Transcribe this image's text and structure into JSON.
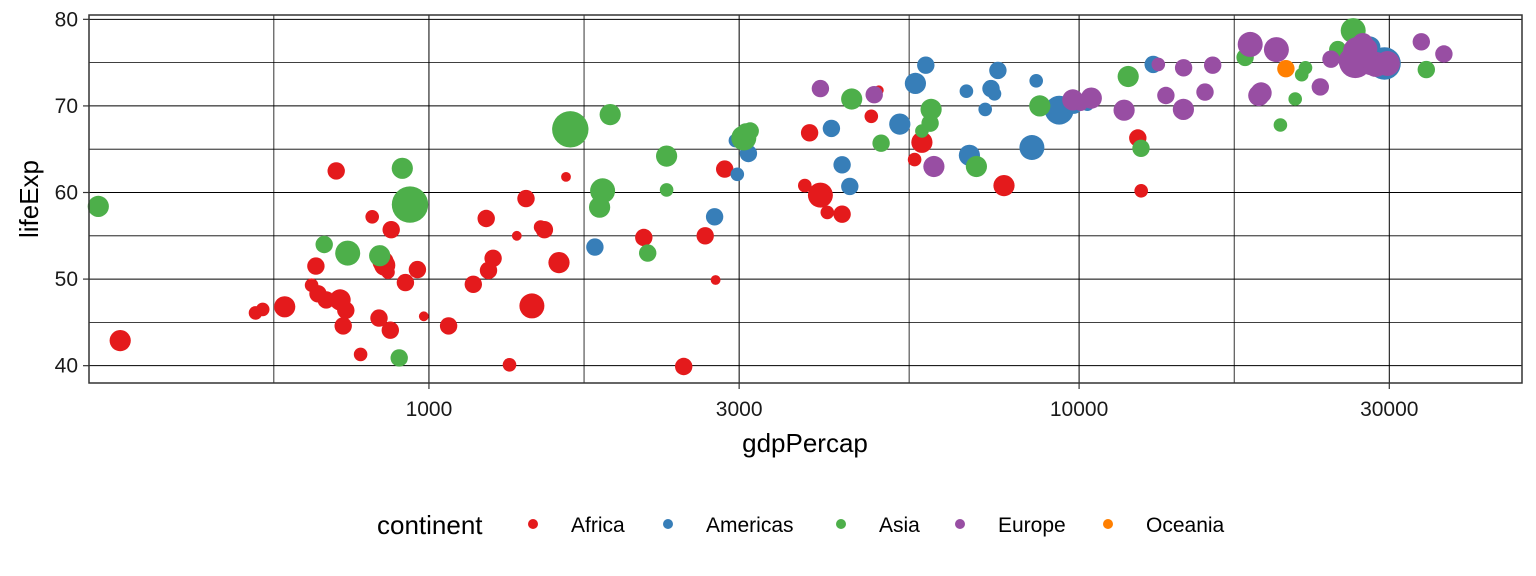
{
  "chart_data": {
    "type": "scatter",
    "title": "",
    "xlabel": "gdpPercap",
    "ylabel": "lifeExp",
    "x_scale": "log10",
    "xlim": [
      300,
      48000
    ],
    "ylim": [
      38,
      80.5
    ],
    "x_ticks": [
      1000,
      3000,
      10000,
      30000
    ],
    "x_tick_labels": [
      "1000",
      "3000",
      "10000",
      "30000"
    ],
    "y_ticks": [
      40,
      50,
      60,
      70,
      80
    ],
    "y_tick_labels": [
      "40",
      "50",
      "60",
      "70",
      "80"
    ],
    "grid": true,
    "legend": {
      "title": "continent",
      "placement": "bottom",
      "entries": [
        {
          "name": "Africa",
          "color": "#E41A1C"
        },
        {
          "name": "Americas",
          "color": "#377EB8"
        },
        {
          "name": "Asia",
          "color": "#4DAF4A"
        },
        {
          "name": "Europe",
          "color": "#984EA3"
        },
        {
          "name": "Oceania",
          "color": "#FF7F00"
        }
      ]
    },
    "series": [
      {
        "name": "Africa",
        "color": "#E41A1C",
        "points": [
          [
            335,
            42.9,
            4
          ],
          [
            541,
            46.1,
            2
          ],
          [
            555,
            46.5,
            2
          ],
          [
            600,
            46.8,
            4
          ],
          [
            660,
            49.3,
            2
          ],
          [
            670,
            51.5,
            3
          ],
          [
            675,
            48.3,
            3
          ],
          [
            695,
            47.6,
            3
          ],
          [
            720,
            62.5,
            3
          ],
          [
            730,
            47.6,
            4
          ],
          [
            738,
            44.6,
            3
          ],
          [
            745,
            46.4,
            3
          ],
          [
            785,
            41.3,
            2
          ],
          [
            818,
            57.2,
            2
          ],
          [
            838,
            45.5,
            3
          ],
          [
            850,
            52.0,
            4
          ],
          [
            855,
            51.6,
            4
          ],
          [
            865,
            50.8,
            2
          ],
          [
            872,
            44.1,
            3
          ],
          [
            875,
            55.7,
            3
          ],
          [
            920,
            49.6,
            3
          ],
          [
            960,
            51.1,
            3
          ],
          [
            982,
            45.7,
            1
          ],
          [
            1072,
            44.6,
            3
          ],
          [
            1170,
            49.4,
            3
          ],
          [
            1235,
            51.0,
            3
          ],
          [
            1255,
            52.4,
            3
          ],
          [
            1225,
            57.0,
            3
          ],
          [
            1330,
            40.1,
            2
          ],
          [
            1365,
            55.0,
            1
          ],
          [
            1410,
            59.3,
            3
          ],
          [
            1440,
            46.9,
            5
          ],
          [
            1485,
            56.0,
            2
          ],
          [
            1505,
            55.7,
            3
          ],
          [
            1585,
            51.9,
            4
          ],
          [
            1625,
            61.8,
            1
          ],
          [
            2140,
            54.8,
            3
          ],
          [
            2465,
            39.9,
            3
          ],
          [
            2660,
            55.0,
            3
          ],
          [
            2760,
            49.9,
            1
          ],
          [
            2850,
            62.7,
            3
          ],
          [
            3785,
            60.8,
            2
          ],
          [
            3850,
            66.9,
            3
          ],
          [
            4000,
            59.7,
            5
          ],
          [
            4100,
            57.7,
            2
          ],
          [
            4320,
            57.5,
            3
          ],
          [
            4790,
            68.8,
            2
          ],
          [
            4920,
            71.8,
            1
          ],
          [
            5730,
            65.8,
            4
          ],
          [
            5585,
            63.8,
            2
          ],
          [
            7665,
            60.8,
            4
          ],
          [
            12460,
            60.2,
            2
          ],
          [
            12310,
            66.3,
            3
          ],
          [
            28000,
            77.0,
            1
          ]
        ]
      },
      {
        "name": "Americas",
        "color": "#377EB8",
        "points": [
          [
            1800,
            53.7,
            3
          ],
          [
            2750,
            57.2,
            3
          ],
          [
            2960,
            66.0,
            2
          ],
          [
            2980,
            62.1,
            2
          ],
          [
            3100,
            64.5,
            3
          ],
          [
            4160,
            67.4,
            3
          ],
          [
            4320,
            63.2,
            3
          ],
          [
            4440,
            60.7,
            3
          ],
          [
            5300,
            67.9,
            4
          ],
          [
            5600,
            72.6,
            4
          ],
          [
            5810,
            74.7,
            3
          ],
          [
            6710,
            71.7,
            2
          ],
          [
            6780,
            64.3,
            4
          ],
          [
            7410,
            71.4,
            2
          ],
          [
            7320,
            72.0,
            3
          ],
          [
            7170,
            69.6,
            2
          ],
          [
            7500,
            74.1,
            3
          ],
          [
            8460,
            65.2,
            5
          ],
          [
            8590,
            72.9,
            2
          ],
          [
            9320,
            69.5,
            6
          ],
          [
            9800,
            70.3,
            4
          ],
          [
            10300,
            70.2,
            2
          ],
          [
            13000,
            74.8,
            3
          ],
          [
            28000,
            76.8,
            4
          ],
          [
            29500,
            74.9,
            7
          ]
        ]
      },
      {
        "name": "Asia",
        "color": "#4DAF4A",
        "points": [
          [
            310,
            58.4,
            4
          ],
          [
            690,
            54.0,
            3
          ],
          [
            750,
            53.0,
            5
          ],
          [
            840,
            52.7,
            4
          ],
          [
            900,
            40.9,
            3
          ],
          [
            910,
            62.8,
            4
          ],
          [
            935,
            58.6,
            8
          ],
          [
            1650,
            67.3,
            8
          ],
          [
            1850,
            60.2,
            5
          ],
          [
            1830,
            58.3,
            4
          ],
          [
            1900,
            69.0,
            4
          ],
          [
            2170,
            53.0,
            3
          ],
          [
            2320,
            64.2,
            4
          ],
          [
            2320,
            60.3,
            2
          ],
          [
            3050,
            66.3,
            5
          ],
          [
            3070,
            67.0,
            3
          ],
          [
            3120,
            67.1,
            3
          ],
          [
            4470,
            70.8,
            4
          ],
          [
            4960,
            65.7,
            3
          ],
          [
            5730,
            67.1,
            2
          ],
          [
            5900,
            68.0,
            3
          ],
          [
            5920,
            69.6,
            4
          ],
          [
            6950,
            63.0,
            4
          ],
          [
            8700,
            70.0,
            4
          ],
          [
            11900,
            73.4,
            4
          ],
          [
            12450,
            65.1,
            3
          ],
          [
            18000,
            75.6,
            3
          ],
          [
            20400,
            67.8,
            2
          ],
          [
            21500,
            70.8,
            2
          ],
          [
            22000,
            73.6,
            2
          ],
          [
            22300,
            74.4,
            2
          ],
          [
            25000,
            76.5,
            3
          ],
          [
            26400,
            78.7,
            5
          ],
          [
            34200,
            74.2,
            3
          ]
        ]
      },
      {
        "name": "Europe",
        "color": "#984EA3",
        "points": [
          [
            4000,
            72.0,
            3
          ],
          [
            4840,
            71.3,
            3
          ],
          [
            5980,
            63.0,
            4
          ],
          [
            10060,
            70.2,
            2
          ],
          [
            9780,
            70.7,
            4
          ],
          [
            10440,
            70.9,
            4
          ],
          [
            11730,
            69.5,
            4
          ],
          [
            13240,
            74.8,
            2
          ],
          [
            13600,
            71.2,
            3
          ],
          [
            14480,
            74.4,
            3
          ],
          [
            14470,
            69.6,
            4
          ],
          [
            15620,
            71.6,
            3
          ],
          [
            16050,
            74.7,
            3
          ],
          [
            18330,
            77.1,
            5
          ],
          [
            18900,
            71.2,
            4
          ],
          [
            19050,
            71.5,
            4
          ],
          [
            20110,
            76.5,
            5
          ],
          [
            23500,
            72.2,
            3
          ],
          [
            24400,
            75.4,
            3
          ],
          [
            26200,
            75.2,
            5
          ],
          [
            26600,
            75.1,
            7
          ],
          [
            26800,
            76.3,
            6
          ],
          [
            27300,
            77.2,
            4
          ],
          [
            27700,
            76.6,
            4
          ],
          [
            28100,
            75.0,
            5
          ],
          [
            28600,
            74.8,
            5
          ],
          [
            29800,
            74.9,
            5
          ],
          [
            33600,
            77.4,
            3
          ],
          [
            36400,
            76.0,
            3
          ]
        ]
      },
      {
        "name": "Oceania",
        "color": "#FF7F00",
        "points": [
          [
            20800,
            74.3,
            3
          ]
        ]
      }
    ]
  }
}
